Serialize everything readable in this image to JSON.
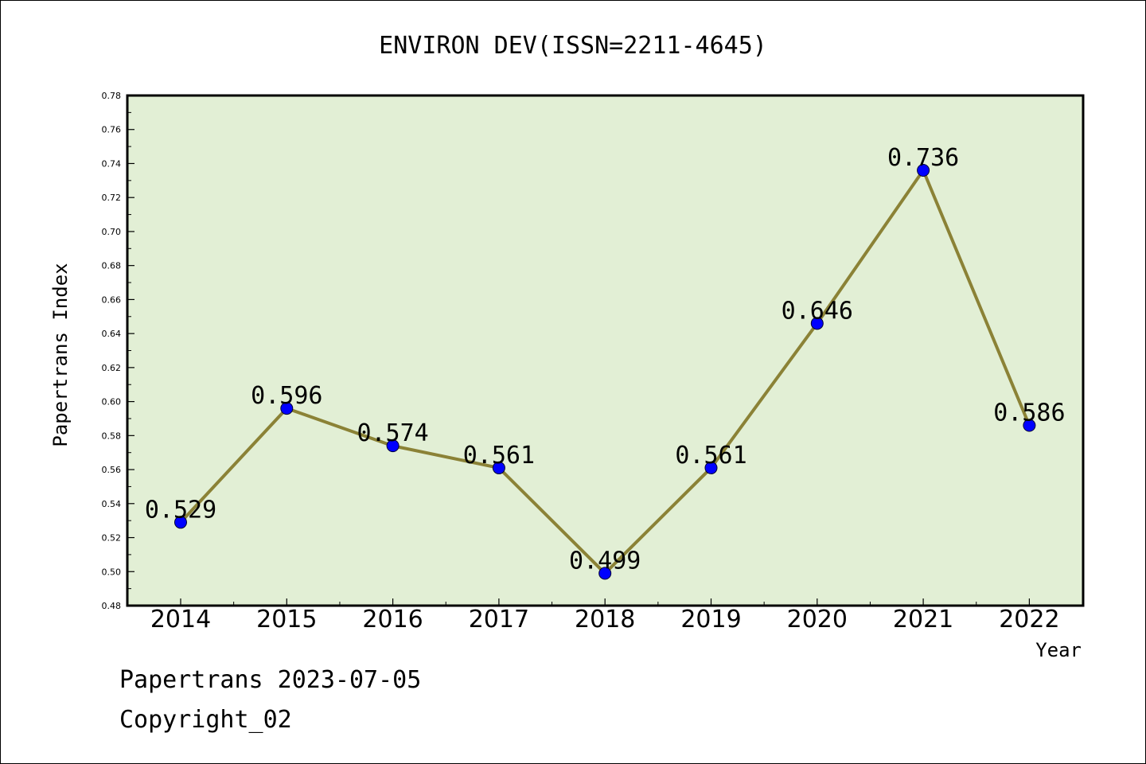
{
  "chart_data": {
    "type": "line",
    "title": "ENVIRON DEV(ISSN=2211-4645)",
    "xlabel": "Year",
    "ylabel": "Papertrans Index",
    "categories": [
      "2014",
      "2015",
      "2016",
      "2017",
      "2018",
      "2019",
      "2020",
      "2021",
      "2022"
    ],
    "series": [
      {
        "values": [
          0.529,
          0.596,
          0.574,
          0.561,
          0.499,
          0.561,
          0.646,
          0.736,
          0.586
        ],
        "labels": [
          "0.529",
          "0.596",
          "0.574",
          "0.561",
          "0.499",
          "0.561",
          "0.646",
          "0.736",
          "0.586"
        ]
      }
    ],
    "ylim": [
      0.48,
      0.78
    ],
    "yticks": [
      "0.48",
      "0.50",
      "0.52",
      "0.54",
      "0.56",
      "0.58",
      "0.60",
      "0.62",
      "0.64",
      "0.66",
      "0.68",
      "0.70",
      "0.72",
      "0.74",
      "0.76",
      "0.78"
    ],
    "grid": false,
    "legend": "none",
    "colors": {
      "plot_background": "#e2efd5",
      "line": "#8b8236",
      "marker": "#0000ff",
      "axis": "#000000"
    }
  },
  "footer": {
    "date_line": "Papertrans 2023-07-05",
    "copyright": "Copyright_02"
  }
}
